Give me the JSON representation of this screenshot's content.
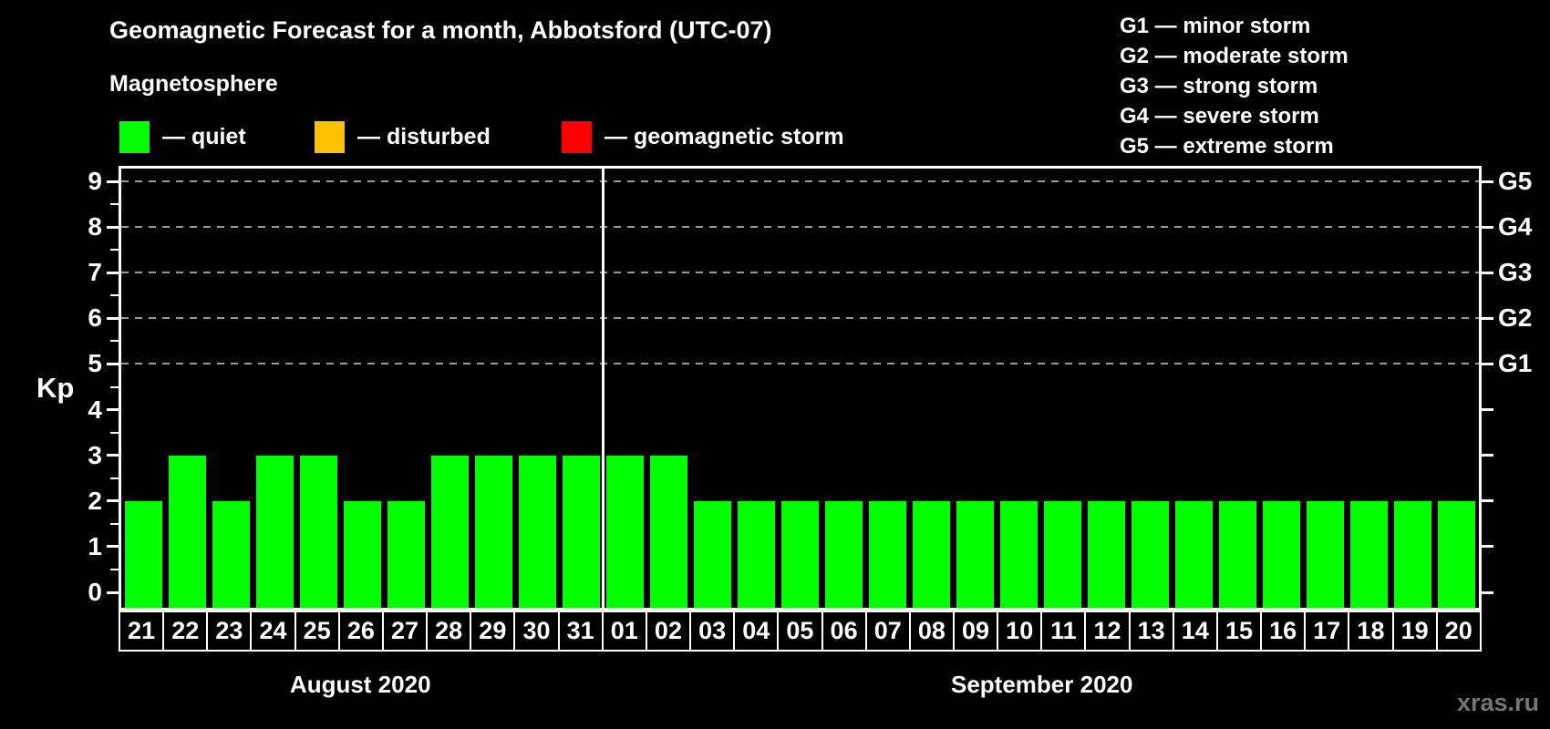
{
  "title": "Geomagnetic Forecast for a month, Abbotsford (UTC-07)",
  "subtitle": "Magnetosphere",
  "legend": {
    "items": [
      {
        "name": "quiet",
        "label": "— quiet",
        "color": "#00ff00"
      },
      {
        "name": "disturbed",
        "label": "— disturbed",
        "color": "#ffc000"
      },
      {
        "name": "geomagnetic-storm",
        "label": "— geomagnetic storm",
        "color": "#ff0000"
      }
    ]
  },
  "g_legend": {
    "items": [
      {
        "label": "G1 — minor storm"
      },
      {
        "label": "G2 — moderate storm"
      },
      {
        "label": "G3 — strong storm"
      },
      {
        "label": "G4 — severe storm"
      },
      {
        "label": "G5 — extreme storm"
      }
    ]
  },
  "chart_data": {
    "type": "bar",
    "title": "Geomagnetic Forecast for a month, Abbotsford (UTC-07)",
    "ylabel": "Kp",
    "ylim": [
      0,
      9
    ],
    "bar_color": "#00ff00",
    "grid": "dashed horizontal lines at Kp 5-9",
    "grid_dashed_at": [
      5,
      6,
      7,
      8,
      9
    ],
    "left_ticks": [
      "0",
      "1",
      "2",
      "3",
      "4",
      "5",
      "6",
      "7",
      "8",
      "9"
    ],
    "right_axis_labels": [
      {
        "kp": 5,
        "label": "G1"
      },
      {
        "kp": 6,
        "label": "G2"
      },
      {
        "kp": 7,
        "label": "G3"
      },
      {
        "kp": 8,
        "label": "G4"
      },
      {
        "kp": 9,
        "label": "G5"
      }
    ],
    "months": [
      {
        "label": "August 2020",
        "days": [
          "21",
          "22",
          "23",
          "24",
          "25",
          "26",
          "27",
          "28",
          "29",
          "30",
          "31"
        ],
        "values": [
          2,
          3,
          2,
          3,
          3,
          2,
          2,
          3,
          3,
          3,
          3
        ]
      },
      {
        "label": "September 2020",
        "days": [
          "01",
          "02",
          "03",
          "04",
          "05",
          "06",
          "07",
          "08",
          "09",
          "10",
          "11",
          "12",
          "13",
          "14",
          "15",
          "16",
          "17",
          "18",
          "19",
          "20"
        ],
        "values": [
          3,
          3,
          2,
          2,
          2,
          2,
          2,
          2,
          2,
          2,
          2,
          2,
          2,
          2,
          2,
          2,
          2,
          2,
          2,
          2
        ]
      }
    ]
  },
  "watermark": "xras.ru"
}
